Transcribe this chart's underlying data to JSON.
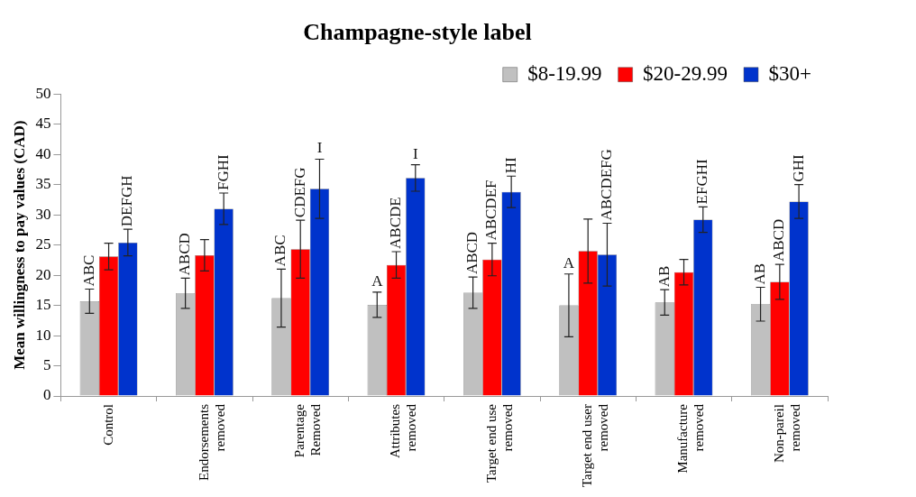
{
  "chart_data": {
    "type": "bar",
    "title": "Champagne-style label",
    "ylabel": "Mean willingness to pay values (CAD)",
    "categories": [
      "Control",
      "Endorsements removed",
      "Parentage Removed",
      "Attributes removed",
      "Target end use removed",
      "Target end user removed",
      "Manufacture removed",
      "Non-pareil removed"
    ],
    "series": [
      {
        "name": "$8-19.99",
        "color": "#c0c0c0",
        "values": [
          15.7,
          17.0,
          16.2,
          15.1,
          17.1,
          15.0,
          15.5,
          15.2
        ],
        "errors": [
          2,
          2.5,
          4.8,
          2.1,
          2.6,
          5.2,
          2.1,
          2.8
        ],
        "value_labels": [
          "ABC",
          "ABCD",
          "ABC",
          "A",
          "ABCD",
          "A",
          "AB",
          "AB"
        ]
      },
      {
        "name": "$20-29.99",
        "color": "#ff0000",
        "values": [
          23.1,
          23.3,
          24.3,
          21.7,
          22.6,
          24.0,
          20.5,
          18.9
        ],
        "errors": [
          2.2,
          2.6,
          4.8,
          2.2,
          2.7,
          5.3,
          2.1,
          2.9
        ],
        "value_labels": [
          null,
          null,
          "CDEFG",
          "ABCDE",
          "ABCDEF",
          null,
          null,
          "ABCD"
        ]
      },
      {
        "name": "$30+",
        "color": "#0033cc",
        "values": [
          25.4,
          31.0,
          34.3,
          36.1,
          33.8,
          23.4,
          29.2,
          32.2
        ],
        "errors": [
          2.2,
          2.6,
          4.9,
          2.2,
          2.6,
          5.2,
          2.1,
          2.8
        ],
        "value_labels": [
          "DEFGH",
          "FGHI",
          "I",
          "I",
          "HI",
          "ABCDEFG",
          "EFGHI",
          "GHI"
        ]
      }
    ],
    "ylim": [
      0,
      50
    ],
    "yticks": [
      0,
      5,
      10,
      15,
      20,
      25,
      30,
      35,
      40,
      45,
      50
    ],
    "grid": false,
    "legend": "top right"
  }
}
